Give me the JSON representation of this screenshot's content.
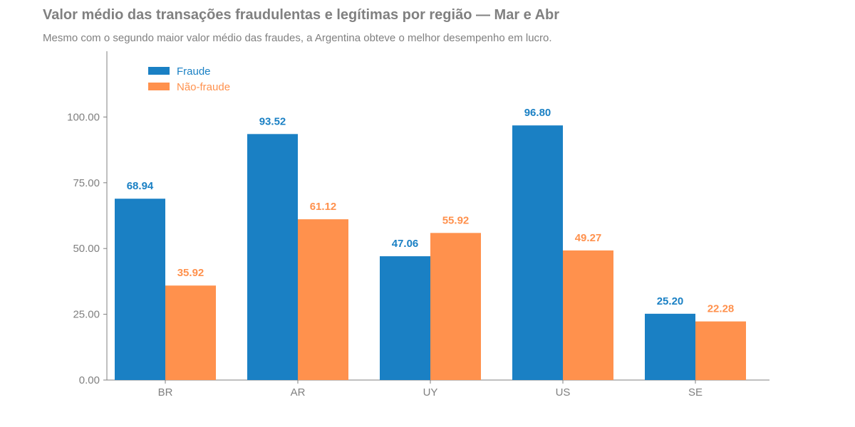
{
  "title": "Valor médio das transações fraudulentas e legítimas por região — Mar e Abr",
  "subtitle": "Mesmo com o segundo maior valor médio das fraudes, a Argentina obteve o melhor desempenho em lucro.",
  "colors": {
    "fraude": "#1a80c4",
    "nao_fraude": "#ff914d",
    "axis": "#808080"
  },
  "chart_data": {
    "type": "bar",
    "categories": [
      "BR",
      "AR",
      "UY",
      "US",
      "SE"
    ],
    "series": [
      {
        "name": "Fraude",
        "values": [
          68.94,
          93.52,
          47.06,
          96.8,
          25.2
        ],
        "labels": [
          "68.94",
          "93.52",
          "47.06",
          "96.80",
          "25.20"
        ]
      },
      {
        "name": "Não-fraude",
        "values": [
          35.92,
          61.12,
          55.92,
          49.27,
          22.28
        ],
        "labels": [
          "35.92",
          "61.12",
          "55.92",
          "49.27",
          "22.28"
        ]
      }
    ],
    "yticks": [
      "0.00",
      "25.00",
      "50.00",
      "75.00",
      "100.00"
    ],
    "ylim": [
      0,
      125
    ],
    "grid": false,
    "legend": "top-left"
  }
}
